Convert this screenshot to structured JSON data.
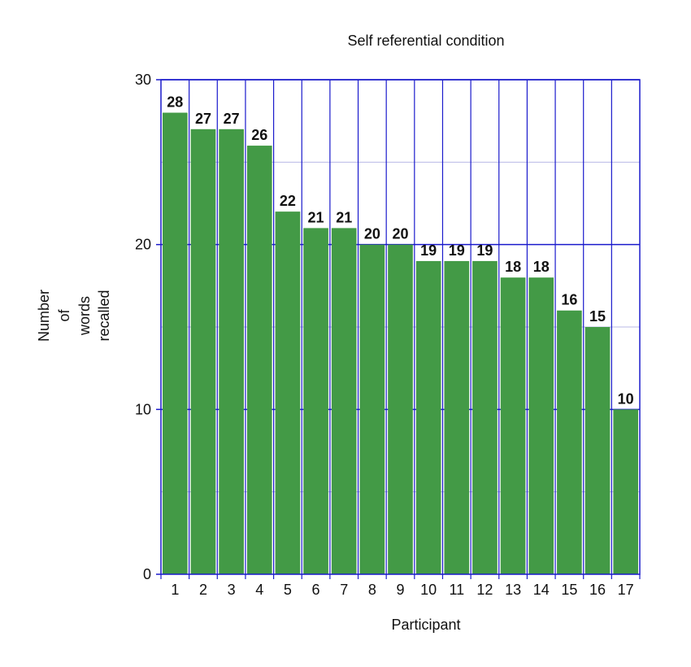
{
  "chart_data": {
    "type": "bar",
    "title": "Self referential condition",
    "xlabel": "Participant",
    "ylabel_lines": [
      "Number",
      "of",
      "words",
      "recalled"
    ],
    "categories": [
      "1",
      "2",
      "3",
      "4",
      "5",
      "6",
      "7",
      "8",
      "9",
      "10",
      "11",
      "12",
      "13",
      "14",
      "15",
      "16",
      "17"
    ],
    "values": [
      28,
      27,
      27,
      26,
      22,
      21,
      21,
      20,
      20,
      19,
      19,
      19,
      18,
      18,
      16,
      15,
      10
    ],
    "ylim": [
      0,
      30
    ],
    "y_ticks": [
      "0",
      "10",
      "20",
      "30"
    ],
    "y_minor_step": 5,
    "grid": true,
    "data_labels": true,
    "legend": "none",
    "colors": {
      "bar": "#439a46",
      "major_grid": "#1a1acc",
      "minor_grid": "#b8b8e6",
      "text": "#111111"
    }
  }
}
